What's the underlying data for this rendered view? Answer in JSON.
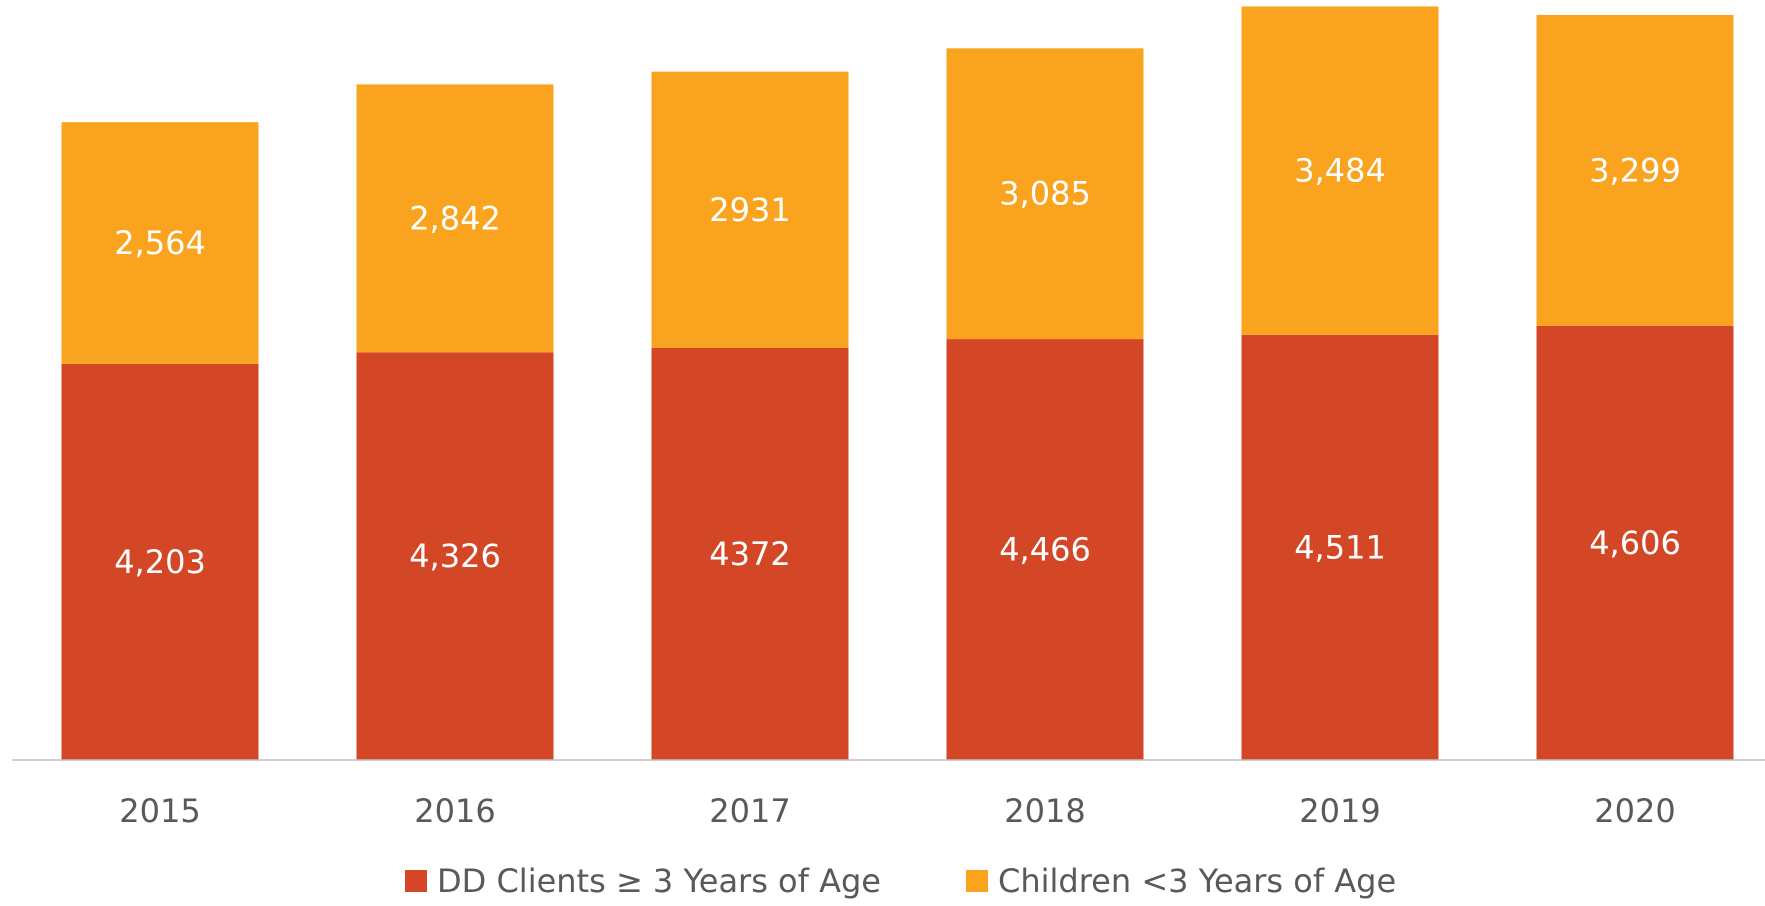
{
  "chart_data": {
    "type": "stacked_bar",
    "categories": [
      "2015",
      "2016",
      "2017",
      "2018",
      "2019",
      "2020"
    ],
    "series": [
      {
        "name": "DD Clients ≥ 3 Years of Age",
        "color": "#d34727",
        "values": [
          4203,
          4326,
          4372,
          4466,
          4511,
          4606
        ],
        "value_labels": [
          "4,203",
          "4,326",
          "4372",
          "4,466",
          "4,511",
          "4,606"
        ]
      },
      {
        "name": "Children <3 Years of Age",
        "color": "#f9a31e",
        "values": [
          2564,
          2842,
          2931,
          3085,
          3484,
          3299
        ],
        "value_labels": [
          "2,564",
          "2,842",
          "2931",
          "3,085",
          "3,484",
          "3,299"
        ]
      }
    ],
    "ylim": [
      0,
      8000
    ]
  }
}
